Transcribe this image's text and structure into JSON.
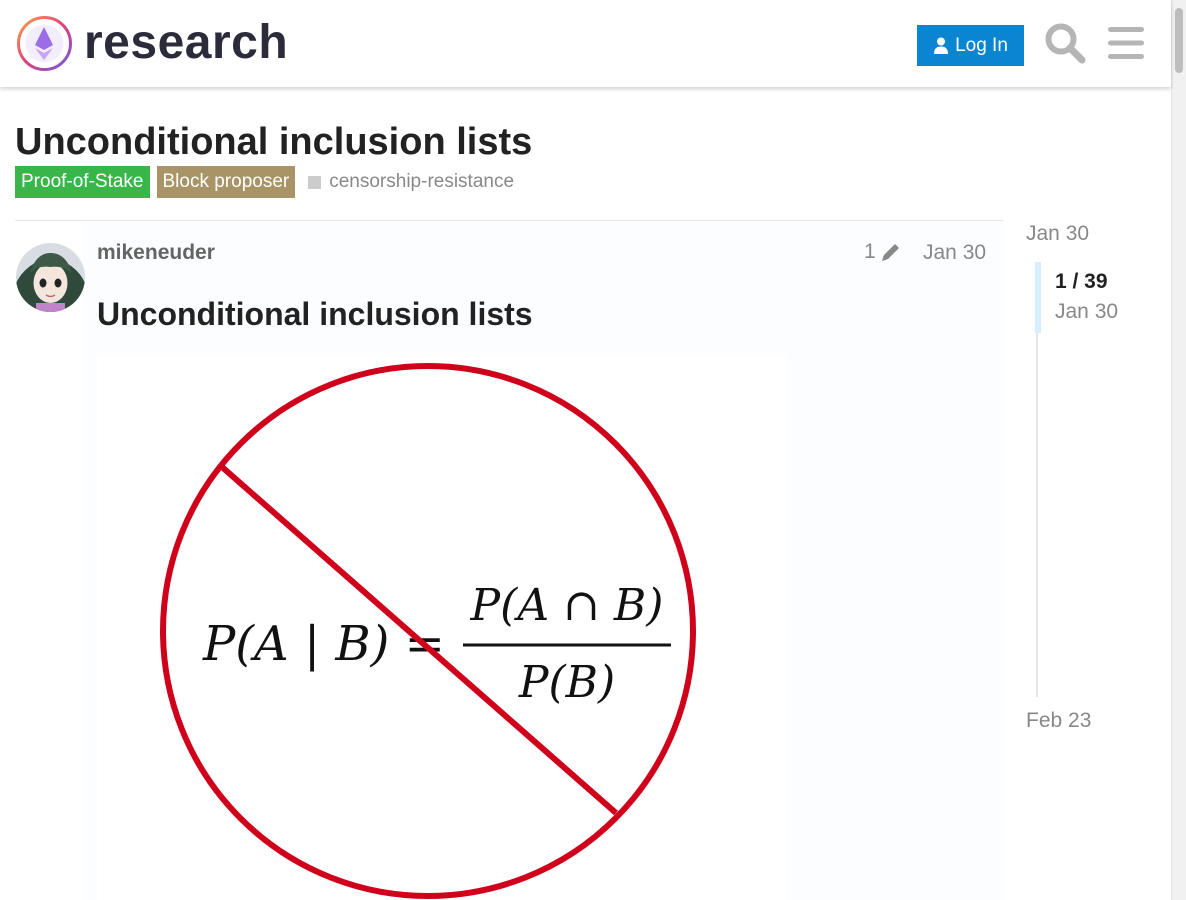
{
  "header": {
    "site_name": "research",
    "login_label": "Log In"
  },
  "topic": {
    "title": "Unconditional inclusion lists",
    "categories": [
      "Proof-of-Stake",
      "Block proposer"
    ],
    "category_colors": [
      "#3ab54a",
      "#a89466"
    ],
    "tags": [
      "censorship-resistance"
    ]
  },
  "post": {
    "username": "mikeneuder",
    "edit_count": "1",
    "date": "Jan 30",
    "heading": "Unconditional inclusion lists",
    "image_formula": {
      "lhs": "P(A | B) =",
      "numerator": "P(A ∩ B)",
      "denominator": "P(B)"
    }
  },
  "timeline": {
    "start_date": "Jan 30",
    "position": "1 / 39",
    "position_date": "Jan 30",
    "end_date": "Feb 23"
  },
  "colors": {
    "accent": "#0a86d0",
    "prohibition_red": "#d0021b"
  },
  "icons": [
    "logo-icon",
    "user-icon",
    "search-icon",
    "hamburger-menu-icon",
    "pencil-icon"
  ]
}
